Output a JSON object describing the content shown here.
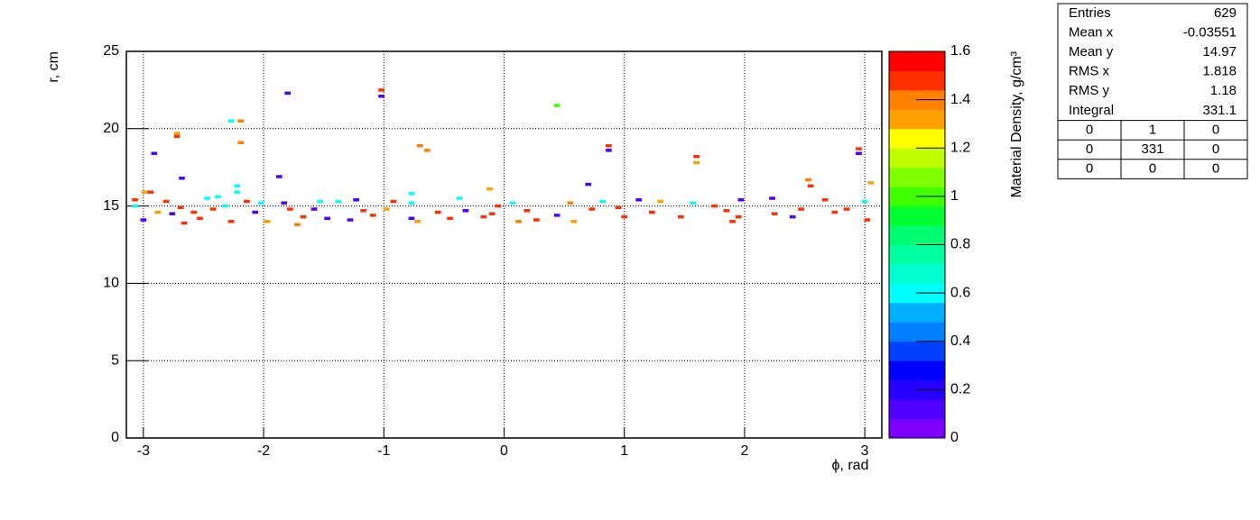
{
  "chart_data": {
    "type": "heatmap",
    "xlabel": "ϕ, rad",
    "ylabel": "r, cm",
    "zlabel": "Material Density, g/cm³",
    "xlim": [
      -3.1416,
      3.1416
    ],
    "xticks": [
      -3,
      -2,
      -1,
      0,
      1,
      2,
      3
    ],
    "ylim": [
      0,
      25
    ],
    "yticks": [
      0,
      5,
      10,
      15,
      20,
      25
    ],
    "zlim": [
      0,
      1.6
    ],
    "zticks": [
      0,
      0.2,
      0.4,
      0.6,
      0.8,
      1,
      1.2,
      1.4,
      1.6
    ],
    "grid": true,
    "palette": [
      "#7b00ff",
      "#5000ff",
      "#2800ff",
      "#0000ff",
      "#0040ff",
      "#0080ff",
      "#00b0ff",
      "#00ffff",
      "#00ffd0",
      "#00ffa0",
      "#00ff70",
      "#00ff30",
      "#40ff00",
      "#80ff00",
      "#c0ff00",
      "#ffff00",
      "#ffa000",
      "#ff8000",
      "#ff3000",
      "#ff0000"
    ],
    "x": [
      -3.07,
      -3.07,
      -2.99,
      -2.94,
      -3.0,
      -2.91,
      -2.88,
      -2.81,
      -2.72,
      -2.72,
      -2.68,
      -2.69,
      -2.66,
      -2.76,
      -2.58,
      -2.53,
      -2.47,
      -2.42,
      -2.38,
      -2.32,
      -2.27,
      -2.19,
      -2.19,
      -2.22,
      -2.22,
      -2.27,
      -2.14,
      -2.07,
      -2.02,
      -1.97,
      -1.87,
      -1.8,
      -1.83,
      -1.78,
      -1.72,
      -1.67,
      -1.58,
      -1.53,
      -1.47,
      -1.38,
      -1.28,
      -1.23,
      -1.17,
      -1.09,
      -1.02,
      -1.02,
      -0.98,
      -0.92,
      -0.77,
      -0.77,
      -0.77,
      -0.7,
      -0.64,
      -0.72,
      -0.55,
      -0.45,
      -0.37,
      -0.32,
      -0.17,
      -0.12,
      -0.1,
      -0.05,
      0.07,
      0.12,
      0.19,
      0.27,
      0.44,
      0.44,
      0.55,
      0.58,
      0.7,
      0.73,
      0.82,
      0.87,
      0.87,
      0.95,
      1.0,
      1.12,
      1.23,
      1.3,
      1.47,
      1.57,
      1.6,
      1.6,
      1.75,
      1.85,
      1.9,
      1.95,
      1.97,
      2.23,
      2.25,
      2.4,
      2.47,
      2.53,
      2.55,
      2.67,
      2.75,
      2.85,
      2.95,
      2.95,
      3.0,
      3.05,
      3.02
    ],
    "y": [
      15.4,
      15.0,
      15.9,
      15.9,
      14.1,
      18.4,
      14.6,
      15.3,
      19.7,
      19.5,
      16.8,
      14.9,
      13.9,
      14.5,
      14.6,
      14.2,
      15.5,
      14.8,
      15.6,
      15.0,
      20.5,
      20.5,
      19.1,
      16.3,
      15.9,
      14.0,
      15.3,
      14.6,
      15.2,
      14.0,
      16.9,
      22.3,
      15.2,
      14.8,
      13.8,
      14.3,
      14.8,
      15.3,
      14.2,
      15.3,
      14.1,
      15.4,
      14.7,
      14.4,
      22.5,
      22.1,
      14.8,
      15.3,
      15.8,
      15.2,
      14.2,
      18.9,
      18.6,
      14.0,
      14.6,
      14.2,
      15.5,
      14.7,
      14.3,
      16.1,
      14.5,
      15.0,
      15.2,
      14.0,
      14.7,
      14.1,
      21.5,
      14.4,
      15.2,
      14.0,
      16.4,
      14.8,
      15.3,
      18.9,
      18.6,
      14.9,
      14.3,
      15.4,
      14.6,
      15.3,
      14.3,
      15.2,
      18.2,
      17.8,
      15.0,
      14.7,
      14.0,
      14.3,
      15.4,
      15.5,
      14.5,
      14.3,
      14.8,
      16.7,
      16.3,
      15.4,
      14.6,
      14.8,
      18.7,
      18.4,
      15.3,
      16.5,
      14.1
    ],
    "z": [
      1.5,
      0.6,
      1.35,
      1.5,
      0.1,
      0.1,
      1.35,
      1.45,
      1.35,
      1.5,
      0.15,
      1.5,
      1.45,
      0.1,
      1.45,
      1.5,
      0.6,
      1.5,
      0.6,
      0.6,
      0.6,
      1.4,
      1.4,
      0.6,
      0.6,
      1.5,
      1.5,
      0.1,
      0.6,
      1.35,
      0.1,
      0.15,
      0.1,
      1.45,
      1.4,
      1.5,
      0.1,
      0.6,
      0.1,
      0.6,
      0.1,
      0.15,
      1.5,
      1.5,
      1.5,
      0.1,
      1.35,
      1.45,
      0.6,
      0.6,
      0.15,
      1.4,
      1.4,
      1.35,
      1.5,
      1.45,
      0.6,
      0.1,
      1.5,
      1.35,
      1.5,
      1.45,
      0.6,
      1.4,
      1.5,
      1.45,
      1.0,
      0.1,
      1.4,
      1.35,
      0.15,
      1.5,
      0.6,
      1.5,
      0.1,
      1.45,
      1.5,
      0.1,
      1.5,
      1.35,
      1.5,
      0.6,
      1.45,
      1.35,
      1.45,
      1.5,
      1.45,
      1.5,
      0.1,
      0.1,
      1.5,
      0.1,
      1.5,
      1.4,
      1.5,
      1.5,
      1.45,
      1.5,
      1.5,
      0.1,
      0.6,
      1.35,
      1.5
    ]
  },
  "stats": {
    "rows": [
      [
        "Entries",
        629
      ],
      [
        "Mean x",
        -0.03551
      ],
      [
        "Mean y",
        14.97
      ],
      [
        "RMS x",
        1.818
      ],
      [
        "RMS y",
        1.18
      ],
      [
        "Integral",
        331.1
      ]
    ],
    "grid": [
      [
        0,
        1,
        0
      ],
      [
        0,
        331,
        0
      ],
      [
        0,
        0,
        0
      ]
    ]
  }
}
